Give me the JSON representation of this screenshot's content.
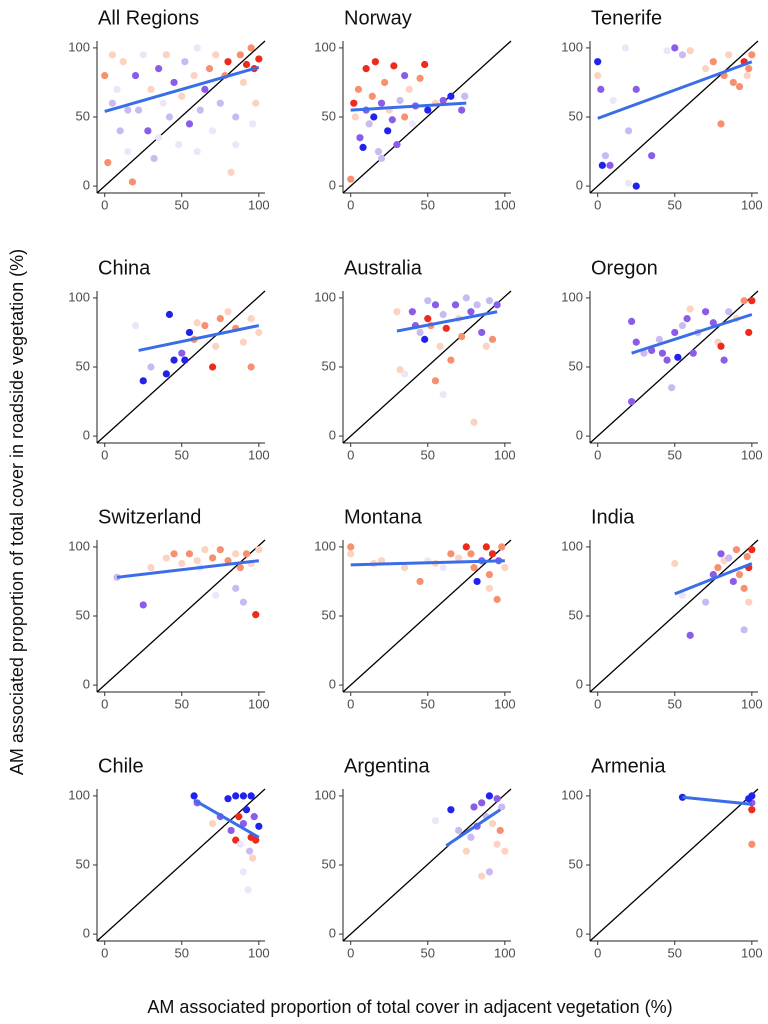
{
  "chart_data": {
    "type": "scatter",
    "xlabel": "AM associated proportion of total cover in adjacent vegetation (%)",
    "ylabel": "AM associated proportion of total cover in roadside vegetation (%)",
    "xlim": [
      -5,
      104
    ],
    "ylim": [
      -5,
      105
    ],
    "xticks": [
      0,
      50,
      100
    ],
    "yticks": [
      0,
      50,
      100
    ],
    "fit_color": "#3a6ee8",
    "diagonal_color": "#000000",
    "panels": [
      {
        "title": "All Regions",
        "x": [
          0,
          2,
          5,
          8,
          10,
          12,
          15,
          18,
          20,
          22,
          25,
          28,
          30,
          32,
          35,
          38,
          40,
          42,
          45,
          48,
          50,
          52,
          55,
          58,
          60,
          62,
          65,
          68,
          70,
          72,
          75,
          78,
          80,
          82,
          85,
          88,
          90,
          92,
          95,
          97,
          100,
          98,
          96,
          85,
          15,
          35,
          60,
          5
        ],
        "y": [
          80,
          17,
          60,
          70,
          40,
          90,
          25,
          3,
          80,
          55,
          95,
          40,
          70,
          20,
          85,
          60,
          95,
          50,
          75,
          30,
          65,
          90,
          45,
          80,
          100,
          55,
          70,
          85,
          40,
          95,
          60,
          80,
          90,
          10,
          50,
          95,
          75,
          88,
          100,
          85,
          92,
          60,
          45,
          30,
          55,
          35,
          25,
          95
        ],
        "colors": [
          "#f7906e",
          "#f7906e",
          "#c9baf2",
          "#ece6f8",
          "#c9baf2",
          "#fcd2c0",
          "#ece6f8",
          "#f7906e",
          "#8a5ce8",
          "#c9baf2",
          "#ece6f8",
          "#8a5ce8",
          "#fcd2c0",
          "#c9baf2",
          "#8a5ce8",
          "#ece6f8",
          "#fcd2c0",
          "#c9baf2",
          "#8a5ce8",
          "#ece6f8",
          "#fcd2c0",
          "#c9baf2",
          "#8a5ce8",
          "#fcd2c0",
          "#ece6f8",
          "#c9baf2",
          "#8a5ce8",
          "#f7906e",
          "#ece6f8",
          "#fcd2c0",
          "#c9baf2",
          "#f7906e",
          "#ee2a1a",
          "#fcd2c0",
          "#c9baf2",
          "#f7906e",
          "#fcd2c0",
          "#ee2a1a",
          "#f7906e",
          "#ee2a1a",
          "#ee2a1a",
          "#fcd2c0",
          "#ece6f8",
          "#ece6f8",
          "#c9baf2",
          "#ece6f8",
          "#ece6f8",
          "#fcd2c0"
        ],
        "fit": {
          "x": [
            0,
            100
          ],
          "y": [
            54,
            86
          ]
        }
      },
      {
        "title": "Norway",
        "x": [
          0,
          2,
          3,
          5,
          6,
          8,
          10,
          10,
          12,
          14,
          15,
          16,
          18,
          20,
          22,
          24,
          25,
          27,
          28,
          30,
          32,
          35,
          38,
          40,
          42,
          45,
          48,
          50,
          55,
          60,
          65,
          72,
          74,
          20,
          35
        ],
        "y": [
          5,
          60,
          50,
          70,
          35,
          28,
          55,
          85,
          45,
          65,
          50,
          90,
          25,
          60,
          75,
          40,
          55,
          48,
          87,
          30,
          62,
          50,
          70,
          45,
          58,
          78,
          88,
          55,
          60,
          62,
          65,
          55,
          65,
          20,
          80
        ],
        "colors": [
          "#f7906e",
          "#ee2a1a",
          "#fcd2c0",
          "#f7906e",
          "#8a5ce8",
          "#2222ee",
          "#8a5ce8",
          "#ee2a1a",
          "#c9baf2",
          "#f7906e",
          "#2222ee",
          "#ee2a1a",
          "#c9baf2",
          "#8a5ce8",
          "#f7906e",
          "#2222ee",
          "#fcd2c0",
          "#8a5ce8",
          "#ee2a1a",
          "#8a5ce8",
          "#c9baf2",
          "#f7906e",
          "#fcd2c0",
          "#ece6f8",
          "#8a5ce8",
          "#f7906e",
          "#ee2a1a",
          "#2222ee",
          "#fcd2c0",
          "#8a5ce8",
          "#2222ee",
          "#8a5ce8",
          "#c9baf2",
          "#c9baf2",
          "#8a5ce8"
        ],
        "fit": {
          "x": [
            0,
            75
          ],
          "y": [
            55,
            60
          ]
        }
      },
      {
        "title": "Tenerife",
        "x": [
          0,
          0,
          2,
          3,
          5,
          8,
          10,
          18,
          20,
          20,
          25,
          25,
          35,
          45,
          50,
          55,
          60,
          70,
          75,
          80,
          82,
          85,
          88,
          92,
          95,
          98,
          100,
          97
        ],
        "y": [
          90,
          80,
          70,
          15,
          22,
          15,
          62,
          100,
          40,
          2,
          70,
          0,
          22,
          98,
          100,
          95,
          98,
          85,
          90,
          45,
          80,
          95,
          75,
          72,
          90,
          85,
          95,
          80
        ],
        "colors": [
          "#2222ee",
          "#fcd2c0",
          "#8a5ce8",
          "#2222ee",
          "#c9baf2",
          "#8a5ce8",
          "#ece6f8",
          "#ece6f8",
          "#c9baf2",
          "#ece6f8",
          "#8a5ce8",
          "#2222ee",
          "#8a5ce8",
          "#ece6f8",
          "#8a5ce8",
          "#c9baf2",
          "#fcd2c0",
          "#fcd2c0",
          "#f7906e",
          "#f7906e",
          "#f7906e",
          "#fcd2c0",
          "#f7906e",
          "#f7906e",
          "#ee2a1a",
          "#f7906e",
          "#f7906e",
          "#fcd2c0"
        ],
        "fit": {
          "x": [
            0,
            100
          ],
          "y": [
            49,
            90
          ]
        }
      },
      {
        "title": "China",
        "x": [
          20,
          25,
          30,
          40,
          42,
          45,
          50,
          52,
          55,
          58,
          60,
          65,
          70,
          72,
          75,
          80,
          85,
          90,
          95,
          95,
          100
        ],
        "y": [
          80,
          40,
          50,
          45,
          88,
          55,
          60,
          55,
          75,
          70,
          82,
          80,
          50,
          65,
          85,
          90,
          78,
          68,
          50,
          85,
          75
        ],
        "colors": [
          "#ece6f8",
          "#2222ee",
          "#c9baf2",
          "#2222ee",
          "#2222ee",
          "#2222ee",
          "#8a5ce8",
          "#2222ee",
          "#2222ee",
          "#f7906e",
          "#fcd2c0",
          "#f7906e",
          "#ee2a1a",
          "#fcd2c0",
          "#f7906e",
          "#fcd2c0",
          "#f7906e",
          "#fcd2c0",
          "#f7906e",
          "#fcd2c0",
          "#fcd2c0"
        ],
        "fit": {
          "x": [
            22,
            100
          ],
          "y": [
            62,
            80
          ]
        }
      },
      {
        "title": "Australia",
        "x": [
          30,
          32,
          35,
          40,
          42,
          45,
          48,
          50,
          50,
          52,
          55,
          55,
          58,
          60,
          62,
          65,
          68,
          70,
          72,
          75,
          78,
          80,
          82,
          85,
          88,
          90,
          92,
          95,
          60
        ],
        "y": [
          90,
          48,
          45,
          90,
          80,
          75,
          70,
          98,
          85,
          80,
          95,
          40,
          65,
          88,
          78,
          55,
          95,
          85,
          72,
          100,
          90,
          10,
          95,
          75,
          65,
          98,
          70,
          95,
          30
        ],
        "colors": [
          "#fcd2c0",
          "#fcd2c0",
          "#ece6f8",
          "#8a5ce8",
          "#8a5ce8",
          "#c9baf2",
          "#2222ee",
          "#c9baf2",
          "#ee2a1a",
          "#f7906e",
          "#8a5ce8",
          "#f7906e",
          "#fcd2c0",
          "#c9baf2",
          "#ee2a1a",
          "#f7906e",
          "#8a5ce8",
          "#fcd2c0",
          "#f7906e",
          "#c9baf2",
          "#8a5ce8",
          "#fcd2c0",
          "#c9baf2",
          "#8a5ce8",
          "#fcd2c0",
          "#c9baf2",
          "#f7906e",
          "#8a5ce8",
          "#ece6f8"
        ],
        "fit": {
          "x": [
            30,
            95
          ],
          "y": [
            76,
            90
          ]
        }
      },
      {
        "title": "Oregon",
        "x": [
          22,
          22,
          25,
          30,
          35,
          40,
          42,
          45,
          48,
          50,
          52,
          55,
          58,
          60,
          62,
          65,
          70,
          75,
          78,
          80,
          82,
          85,
          95,
          98,
          100,
          90
        ],
        "y": [
          83,
          25,
          68,
          60,
          62,
          70,
          60,
          55,
          35,
          75,
          57,
          80,
          85,
          92,
          60,
          75,
          90,
          82,
          68,
          65,
          55,
          90,
          98,
          75,
          98,
          85
        ],
        "colors": [
          "#8a5ce8",
          "#8a5ce8",
          "#8a5ce8",
          "#c9baf2",
          "#8a5ce8",
          "#c9baf2",
          "#8a5ce8",
          "#8a5ce8",
          "#c9baf2",
          "#8a5ce8",
          "#2222ee",
          "#c9baf2",
          "#8a5ce8",
          "#fcd2c0",
          "#8a5ce8",
          "#c9baf2",
          "#8a5ce8",
          "#8a5ce8",
          "#fcd2c0",
          "#ee2a1a",
          "#8a5ce8",
          "#c9baf2",
          "#f7906e",
          "#ee2a1a",
          "#ee2a1a",
          "#fcd2c0"
        ],
        "fit": {
          "x": [
            22,
            100
          ],
          "y": [
            60,
            88
          ]
        }
      },
      {
        "title": "Switzerland",
        "x": [
          8,
          25,
          30,
          40,
          45,
          50,
          55,
          60,
          62,
          65,
          70,
          72,
          75,
          80,
          85,
          88,
          90,
          92,
          95,
          98,
          100,
          85
        ],
        "y": [
          78,
          58,
          85,
          92,
          95,
          88,
          95,
          90,
          85,
          98,
          92,
          65,
          98,
          90,
          95,
          85,
          60,
          95,
          88,
          51,
          98,
          70
        ],
        "colors": [
          "#c9baf2",
          "#8a5ce8",
          "#fcd2c0",
          "#fcd2c0",
          "#f7906e",
          "#fcd2c0",
          "#f7906e",
          "#fcd2c0",
          "#ece6f8",
          "#fcd2c0",
          "#f7906e",
          "#ece6f8",
          "#f7906e",
          "#f7906e",
          "#fcd2c0",
          "#f7906e",
          "#c9baf2",
          "#f7906e",
          "#fcd2c0",
          "#ee2a1a",
          "#fcd2c0",
          "#c9baf2"
        ],
        "fit": {
          "x": [
            8,
            100
          ],
          "y": [
            78,
            90
          ]
        }
      },
      {
        "title": "Montana",
        "x": [
          0,
          0,
          15,
          20,
          35,
          45,
          50,
          55,
          60,
          70,
          75,
          78,
          80,
          82,
          85,
          88,
          90,
          92,
          95,
          98,
          100,
          65,
          90,
          96
        ],
        "y": [
          100,
          95,
          88,
          90,
          85,
          75,
          90,
          88,
          85,
          92,
          100,
          95,
          85,
          75,
          90,
          100,
          80,
          95,
          62,
          100,
          85,
          95,
          70,
          90
        ],
        "colors": [
          "#f7906e",
          "#fcd2c0",
          "#fcd2c0",
          "#fcd2c0",
          "#fcd2c0",
          "#f7906e",
          "#ece6f8",
          "#fcd2c0",
          "#ece6f8",
          "#fcd2c0",
          "#ee2a1a",
          "#f7906e",
          "#f7906e",
          "#2222ee",
          "#8a5ce8",
          "#ee2a1a",
          "#f7906e",
          "#ee2a1a",
          "#f7906e",
          "#f7906e",
          "#fcd2c0",
          "#f7906e",
          "#fcd2c0",
          "#8a5ce8"
        ],
        "fit": {
          "x": [
            0,
            100
          ],
          "y": [
            87,
            90
          ]
        }
      },
      {
        "title": "India",
        "x": [
          50,
          55,
          60,
          70,
          75,
          78,
          80,
          82,
          85,
          88,
          90,
          92,
          95,
          95,
          98,
          100,
          97,
          98
        ],
        "y": [
          88,
          65,
          36,
          60,
          80,
          85,
          95,
          90,
          92,
          75,
          98,
          80,
          70,
          40,
          85,
          98,
          93,
          60
        ],
        "colors": [
          "#fcd2c0",
          "#ece6f8",
          "#8a5ce8",
          "#c9baf2",
          "#8a5ce8",
          "#f7906e",
          "#8a5ce8",
          "#fcd2c0",
          "#c9baf2",
          "#8a5ce8",
          "#f7906e",
          "#f7906e",
          "#f7906e",
          "#c9baf2",
          "#ee2a1a",
          "#ee2a1a",
          "#f7906e",
          "#fcd2c0"
        ],
        "fit": {
          "x": [
            50,
            100
          ],
          "y": [
            66,
            88
          ]
        }
      },
      {
        "title": "Chile",
        "x": [
          58,
          60,
          70,
          75,
          80,
          82,
          85,
          85,
          87,
          88,
          90,
          90,
          92,
          93,
          95,
          95,
          96,
          97,
          98,
          100,
          90,
          94
        ],
        "y": [
          100,
          95,
          80,
          85,
          98,
          75,
          68,
          100,
          85,
          65,
          100,
          80,
          90,
          32,
          100,
          70,
          55,
          85,
          68,
          78,
          45,
          60
        ],
        "colors": [
          "#2222ee",
          "#8a5ce8",
          "#fcd2c0",
          "#8a5ce8",
          "#2222ee",
          "#8a5ce8",
          "#ee2a1a",
          "#2222ee",
          "#ee2a1a",
          "#ece6f8",
          "#2222ee",
          "#8a5ce8",
          "#2222ee",
          "#ece6f8",
          "#2222ee",
          "#ee2a1a",
          "#fcd2c0",
          "#8a5ce8",
          "#ee2a1a",
          "#2222ee",
          "#ece6f8",
          "#c9baf2"
        ],
        "fit": {
          "x": [
            58,
            100
          ],
          "y": [
            97,
            70
          ]
        }
      },
      {
        "title": "Argentina",
        "x": [
          55,
          65,
          70,
          75,
          78,
          80,
          82,
          85,
          85,
          88,
          90,
          90,
          92,
          95,
          95,
          97,
          98,
          100
        ],
        "y": [
          82,
          90,
          75,
          60,
          70,
          92,
          78,
          95,
          42,
          85,
          100,
          45,
          80,
          98,
          65,
          75,
          92,
          60
        ],
        "colors": [
          "#ece6f8",
          "#2222ee",
          "#c9baf2",
          "#fcd2c0",
          "#c9baf2",
          "#8a5ce8",
          "#8a5ce8",
          "#8a5ce8",
          "#fcd2c0",
          "#c9baf2",
          "#2222ee",
          "#c9baf2",
          "#fcd2c0",
          "#8a5ce8",
          "#fcd2c0",
          "#f7906e",
          "#c9baf2",
          "#fcd2c0"
        ],
        "fit": {
          "x": [
            62,
            97
          ],
          "y": [
            64,
            90
          ]
        }
      },
      {
        "title": "Armenia",
        "x": [
          55,
          100,
          100,
          100,
          100,
          98
        ],
        "y": [
          99,
          100,
          95,
          90,
          65,
          98
        ],
        "colors": [
          "#2222ee",
          "#2222ee",
          "#8a5ce8",
          "#ee2a1a",
          "#f7906e",
          "#2222ee"
        ],
        "fit": {
          "x": [
            55,
            100
          ],
          "y": [
            99,
            94
          ]
        }
      }
    ]
  }
}
